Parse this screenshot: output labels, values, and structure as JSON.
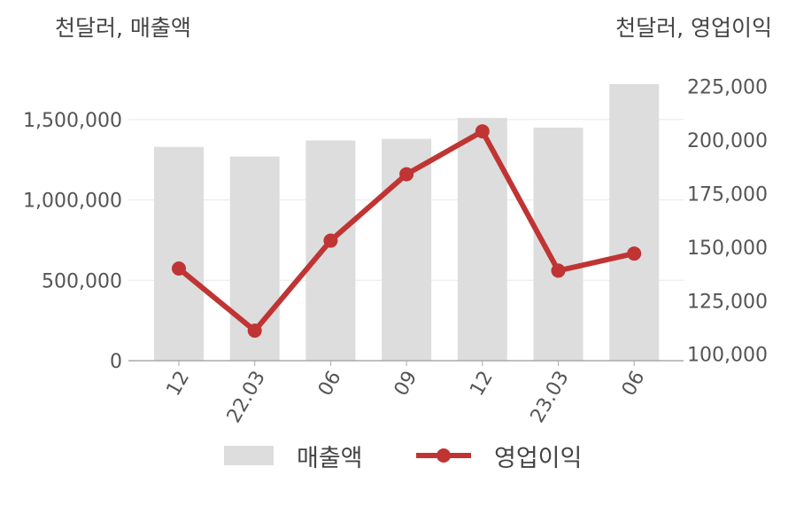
{
  "units": {
    "left": "천달러, 매출액",
    "right": "천달러, 영업이익"
  },
  "colors": {
    "bar": "#dddddd",
    "line": "#c03434",
    "grid": "#e8e8e8",
    "axis": "#aaaaaa"
  },
  "chart_data": {
    "type": "bar",
    "categories": [
      "12",
      "22.03",
      "06",
      "09",
      "12",
      "23.03",
      "06"
    ],
    "series": [
      {
        "name": "매출액",
        "type": "bar",
        "axis": "left",
        "values": [
          1330000,
          1270000,
          1370000,
          1380000,
          1510000,
          1450000,
          1720000
        ]
      },
      {
        "name": "영업이익",
        "type": "line",
        "axis": "right",
        "values": [
          140000,
          111000,
          153000,
          184000,
          204000,
          139000,
          147000
        ]
      }
    ],
    "left_axis": {
      "ylim": [
        0,
        1720000
      ],
      "ticks": [
        0,
        500000,
        1000000,
        1500000
      ],
      "tick_labels": [
        "0",
        "500,000",
        "1,000,000",
        "1,500,000"
      ]
    },
    "right_axis": {
      "ylim": [
        97000,
        226000
      ],
      "ticks": [
        100000,
        125000,
        150000,
        175000,
        200000,
        225000
      ],
      "tick_labels": [
        "100,000",
        "125,000",
        "150,000",
        "175,000",
        "200,000",
        "225,000"
      ]
    },
    "grid": true,
    "legend": "bottom"
  }
}
